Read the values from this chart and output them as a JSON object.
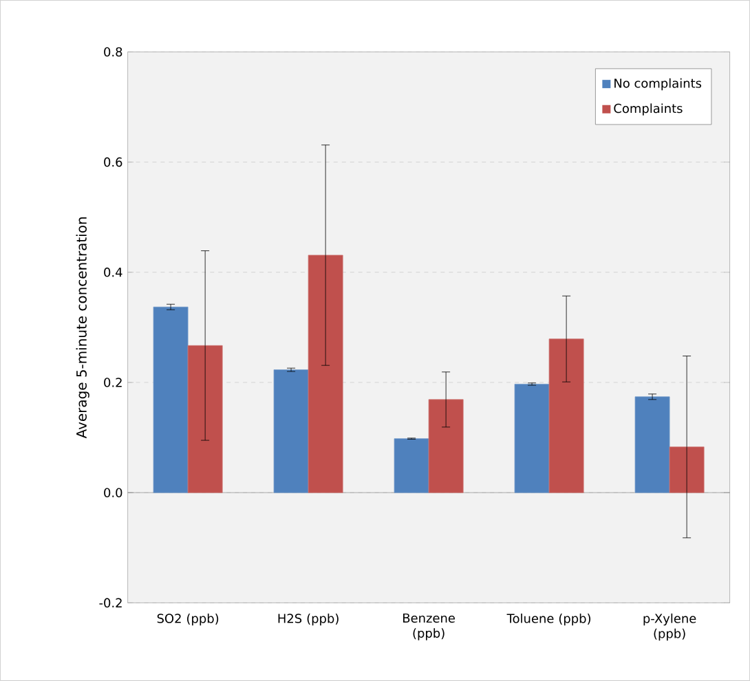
{
  "chart_data": {
    "type": "bar",
    "ylabel": "Average 5-minute concentration",
    "categories": [
      "SO2 (ppb)",
      "H2S (ppb)",
      "Benzene (ppb)",
      "Toluene (ppb)",
      "p-Xylene (ppb)"
    ],
    "series": [
      {
        "name": "No complaints",
        "color": "#4f81bd",
        "values": [
          0.337,
          0.223,
          0.098,
          0.197,
          0.174
        ],
        "errors": [
          0.005,
          0.003,
          0.001,
          0.002,
          0.005
        ]
      },
      {
        "name": "Complaints",
        "color": "#c0504d",
        "values": [
          0.267,
          0.431,
          0.169,
          0.279,
          0.083
        ],
        "errors": [
          0.172,
          0.2,
          0.05,
          0.078,
          0.165
        ]
      }
    ],
    "ylim": [
      -0.2,
      0.8
    ],
    "yticks": [
      -0.2,
      {
        "value": 0,
        "label": "0.0"
      },
      0.2,
      0.4,
      0.6,
      0.8
    ],
    "grid": "y",
    "legend": "top right"
  }
}
